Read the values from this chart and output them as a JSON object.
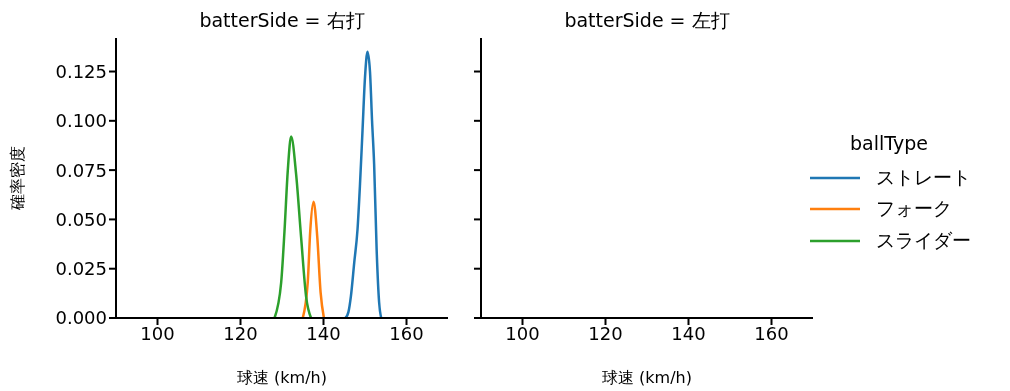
{
  "chart_data": [
    {
      "type": "line",
      "title": "batterSide = 右打",
      "xlabel": "球速 (km/h)",
      "ylabel": "確率密度",
      "legend_title": "ballType",
      "legend": "right",
      "xlim": [
        90,
        170
      ],
      "xticks": [
        100,
        120,
        140,
        160
      ],
      "ylim": [
        0,
        0.142
      ],
      "yticks": [
        {
          "value": 0,
          "label": "0.000"
        },
        {
          "value": 0.025,
          "label": "0.025"
        },
        {
          "value": 0.05,
          "label": "0.050"
        },
        {
          "value": 0.075,
          "label": "0.075"
        },
        {
          "value": 0.1,
          "label": "0.100"
        },
        {
          "value": 0.125,
          "label": "0.125"
        }
      ],
      "series": [
        {
          "name": "ストレート",
          "color": "#1f77b4",
          "x": [
            145.3,
            146,
            146.6,
            147.4,
            148.2,
            148.8,
            149.4,
            150,
            150.6,
            151.2,
            151.7,
            152.2,
            152.8,
            153.4,
            153.9
          ],
          "values": [
            0,
            0.003,
            0.011,
            0.028,
            0.045,
            0.068,
            0.095,
            0.122,
            0.135,
            0.125,
            0.1,
            0.078,
            0.035,
            0.008,
            0
          ]
        },
        {
          "name": "フォーク",
          "color": "#ff7f0e",
          "x": [
            135,
            136.2,
            136.8,
            137.6,
            138.5,
            139.3,
            140.1
          ],
          "values": [
            0,
            0.018,
            0.044,
            0.059,
            0.041,
            0.013,
            0
          ]
        },
        {
          "name": "スライダー",
          "color": "#2ca02c",
          "x": [
            128.2,
            129.8,
            130.6,
            131.4,
            132.2,
            133.4,
            134.6,
            135.8,
            137
          ],
          "values": [
            0,
            0.018,
            0.044,
            0.075,
            0.092,
            0.073,
            0.041,
            0.011,
            0
          ]
        }
      ]
    },
    {
      "type": "line",
      "title": "batterSide = 左打",
      "xlabel": "球速 (km/h)",
      "tick_labels": "x",
      "xlim": [
        90,
        170
      ],
      "xticks": [
        100,
        120,
        140,
        160
      ],
      "ylim": [
        0,
        0.142
      ],
      "yticks": [
        0,
        0.025,
        0.05,
        0.075,
        0.1,
        0.125
      ]
    }
  ]
}
